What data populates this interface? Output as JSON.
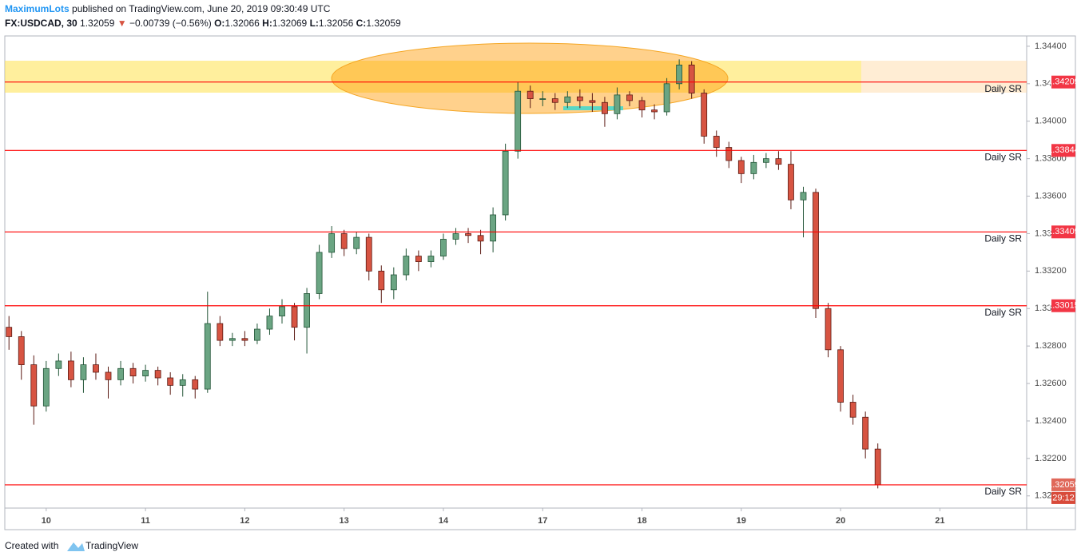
{
  "header": {
    "author": "MaximumLots",
    "published": "published on TradingView.com, June 20, 2019 09:30:49 UTC",
    "symbol": "FX:USDCAD, 30",
    "price": "1.32059",
    "change": "−0.00739 (−0.56%)",
    "o_label": "O:",
    "o": "1.32066",
    "h_label": "H:",
    "h": "1.32069",
    "l_label": "L:",
    "l": "1.32056",
    "c_label": "C:",
    "c": "1.32059"
  },
  "chart_data": {
    "type": "candlestick",
    "up_color": "#6ba583",
    "down_color": "#d75442",
    "x": [
      -0.375,
      -0.25,
      -0.125,
      0,
      0.125,
      0.25,
      0.375,
      0.5,
      0.625,
      0.75,
      0.875,
      1,
      1.125,
      1.25,
      1.375,
      1.5,
      1.625,
      1.75,
      1.875,
      2,
      2.125,
      2.25,
      2.375,
      2.5,
      2.625,
      2.75,
      2.875,
      3,
      3.125,
      3.25,
      3.375,
      3.5,
      3.625,
      3.75,
      3.875,
      4,
      4.125,
      4.25,
      4.375,
      4.5,
      4.625,
      4.75,
      4.875,
      5,
      5.125,
      5.25,
      5.375,
      5.5,
      5.625,
      5.75,
      5.875,
      6,
      6.125,
      6.25,
      6.375,
      6.5,
      6.625,
      6.75,
      6.875,
      7,
      7.125,
      7.25,
      7.375,
      7.5,
      7.625,
      7.75,
      7.875,
      8,
      8.125,
      8.25,
      8.375
    ],
    "open": [
      1.329,
      1.3285,
      1.327,
      1.3248,
      1.3268,
      1.3272,
      1.3262,
      1.327,
      1.3266,
      1.3262,
      1.3268,
      1.3264,
      1.3267,
      1.3263,
      1.3259,
      1.3262,
      1.3257,
      1.3292,
      1.3283,
      1.3284,
      1.3283,
      1.3289,
      1.3296,
      1.3301,
      1.329,
      1.3308,
      1.333,
      1.334,
      1.3332,
      1.3338,
      1.332,
      1.331,
      1.3318,
      1.3328,
      1.3325,
      1.3328,
      1.3337,
      1.334,
      1.3339,
      1.3336,
      1.335,
      1.3384,
      1.3416,
      1.3412,
      1.3412,
      1.341,
      1.3413,
      1.3411,
      1.341,
      1.3404,
      1.3414,
      1.3411,
      1.3406,
      1.3405,
      1.342,
      1.343,
      1.3415,
      1.3392,
      1.3386,
      1.3379,
      1.3372,
      1.3378,
      1.338,
      1.3377,
      1.3358,
      1.3362,
      1.33,
      1.3278,
      1.325,
      1.3242,
      1.3225
    ],
    "high": [
      1.3296,
      1.3288,
      1.3275,
      1.3272,
      1.3276,
      1.3277,
      1.3274,
      1.3276,
      1.3269,
      1.3272,
      1.3271,
      1.327,
      1.3269,
      1.3266,
      1.3265,
      1.3264,
      1.3309,
      1.3296,
      1.3287,
      1.3288,
      1.3292,
      1.33,
      1.3305,
      1.3303,
      1.3311,
      1.3334,
      1.3344,
      1.3342,
      1.3341,
      1.334,
      1.3323,
      1.3322,
      1.3332,
      1.3331,
      1.3331,
      1.334,
      1.3343,
      1.3343,
      1.3342,
      1.3354,
      1.3388,
      1.3421,
      1.3419,
      1.3416,
      1.3415,
      1.3416,
      1.3417,
      1.3415,
      1.3413,
      1.3418,
      1.3416,
      1.3413,
      1.3409,
      1.3423,
      1.3433,
      1.3432,
      1.3417,
      1.3395,
      1.3389,
      1.3381,
      1.3382,
      1.3383,
      1.3384,
      1.3384,
      1.3365,
      1.3364,
      1.3303,
      1.328,
      1.3254,
      1.3245,
      1.3228
    ],
    "low": [
      1.3278,
      1.3262,
      1.3238,
      1.3245,
      1.3264,
      1.3258,
      1.3255,
      1.3262,
      1.3252,
      1.3259,
      1.326,
      1.3261,
      1.3259,
      1.3254,
      1.3253,
      1.3252,
      1.3255,
      1.328,
      1.328,
      1.328,
      1.3281,
      1.3286,
      1.3292,
      1.3283,
      1.3276,
      1.3305,
      1.3327,
      1.3328,
      1.3329,
      1.3315,
      1.3303,
      1.3305,
      1.3315,
      1.332,
      1.3322,
      1.3326,
      1.3334,
      1.3335,
      1.3329,
      1.333,
      1.3347,
      1.338,
      1.3407,
      1.3408,
      1.3406,
      1.3407,
      1.3407,
      1.3405,
      1.3397,
      1.3401,
      1.3408,
      1.3402,
      1.3401,
      1.3403,
      1.3417,
      1.3412,
      1.3388,
      1.3381,
      1.3375,
      1.3367,
      1.3369,
      1.3375,
      1.3374,
      1.3353,
      1.3338,
      1.3295,
      1.3274,
      1.3245,
      1.3238,
      1.322,
      1.3204
    ],
    "close": [
      1.3285,
      1.327,
      1.3248,
      1.3268,
      1.3272,
      1.3262,
      1.327,
      1.3266,
      1.3262,
      1.3268,
      1.3264,
      1.3267,
      1.3263,
      1.3259,
      1.3262,
      1.3257,
      1.3292,
      1.3283,
      1.3284,
      1.3283,
      1.3289,
      1.3296,
      1.3301,
      1.329,
      1.3308,
      1.333,
      1.334,
      1.3332,
      1.3338,
      1.332,
      1.331,
      1.3318,
      1.3328,
      1.3325,
      1.3328,
      1.3337,
      1.334,
      1.3339,
      1.3336,
      1.335,
      1.3384,
      1.3416,
      1.3412,
      1.3412,
      1.341,
      1.3413,
      1.3411,
      1.341,
      1.3404,
      1.3414,
      1.3411,
      1.3406,
      1.3405,
      1.342,
      1.343,
      1.3415,
      1.3392,
      1.3386,
      1.3379,
      1.3372,
      1.3378,
      1.338,
      1.3377,
      1.3358,
      1.3362,
      1.33,
      1.3278,
      1.325,
      1.3242,
      1.3225,
      1.32059
    ],
    "xlim": [
      -0.417,
      9.874
    ],
    "xticks": [
      {
        "value": 0,
        "label": "10"
      },
      {
        "value": 1,
        "label": "11"
      },
      {
        "value": 2,
        "label": "12"
      },
      {
        "value": 3,
        "label": "13"
      },
      {
        "value": 4,
        "label": "14"
      },
      {
        "value": 5,
        "label": "17"
      },
      {
        "value": 6,
        "label": "18"
      },
      {
        "value": 7,
        "label": "19"
      },
      {
        "value": 8,
        "label": "20"
      },
      {
        "value": 9,
        "label": "21"
      }
    ],
    "ylim": [
      1.31935,
      1.34455
    ],
    "yticks": [
      {
        "value": 1.344,
        "label": "1.34400"
      },
      {
        "value": 1.342,
        "label": "1.34200"
      },
      {
        "value": 1.34,
        "label": "1.34000"
      },
      {
        "value": 1.338,
        "label": "1.33800"
      },
      {
        "value": 1.336,
        "label": "1.33600"
      },
      {
        "value": 1.334,
        "label": "1.33400"
      },
      {
        "value": 1.332,
        "label": "1.33200"
      },
      {
        "value": 1.33,
        "label": "1.33000"
      },
      {
        "value": 1.328,
        "label": "1.32800"
      },
      {
        "value": 1.326,
        "label": "1.32600"
      },
      {
        "value": 1.324,
        "label": "1.32400"
      },
      {
        "value": 1.322,
        "label": "1.32200"
      },
      {
        "value": 1.32,
        "label": "1.32000"
      }
    ],
    "levels": [
      {
        "value": 1.34209,
        "text": "Daily SR",
        "color": "#f23645"
      },
      {
        "value": 1.33844,
        "text": "Daily SR",
        "color": "#f23645"
      },
      {
        "value": 1.33409,
        "text": "Daily SR",
        "color": "#f23645"
      },
      {
        "value": 1.33015,
        "text": "Daily SR",
        "color": "#f23645"
      },
      {
        "value": 1.32059,
        "text": "Daily SR",
        "color": "#e0685a"
      }
    ],
    "countdown": "29:12"
  },
  "footer": {
    "created": "Created with",
    "brand": "TradingView"
  }
}
